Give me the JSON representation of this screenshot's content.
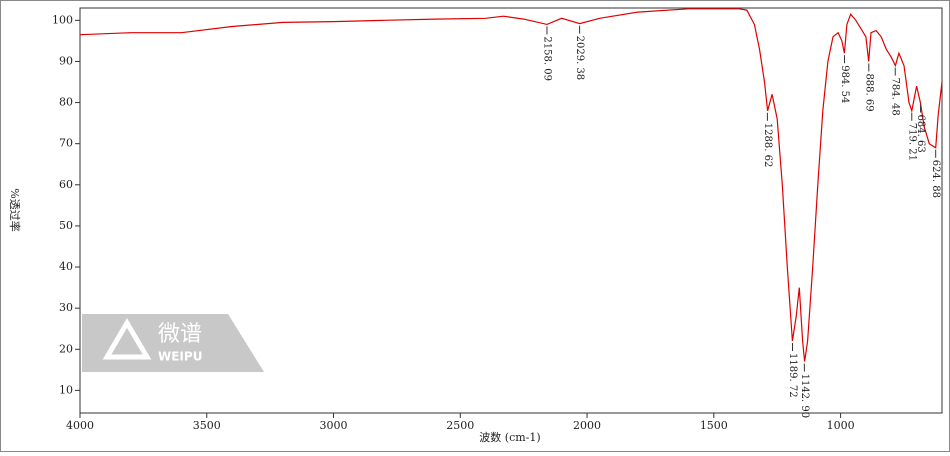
{
  "chart_data": {
    "type": "line",
    "xlabel": "波数 (cm-1)",
    "ylabel": "%透过率",
    "watermark": [
      "微谱",
      "WEIPU"
    ],
    "xlim": [
      4000,
      600
    ],
    "xticks": [
      4000,
      3500,
      3000,
      2500,
      2000,
      1500,
      1000
    ],
    "ylim": [
      4.5,
      103
    ],
    "yticks": [
      10,
      20,
      30,
      40,
      50,
      60,
      70,
      80,
      90,
      100
    ],
    "x": [
      4000,
      3800,
      3600,
      3400,
      3200,
      3000,
      2800,
      2600,
      2400,
      2330,
      2250,
      2158,
      2100,
      2029,
      1950,
      1800,
      1600,
      1400,
      1370,
      1340,
      1320,
      1300,
      1288,
      1270,
      1250,
      1230,
      1210,
      1190,
      1175,
      1163,
      1150,
      1142,
      1130,
      1110,
      1090,
      1070,
      1050,
      1030,
      1010,
      995,
      985,
      975,
      960,
      940,
      920,
      900,
      889,
      880,
      860,
      840,
      820,
      800,
      784,
      770,
      750,
      730,
      719,
      700,
      685,
      670,
      650,
      625,
      615,
      600
    ],
    "series": [
      {
        "color": "#e00000",
        "values": [
          96.5,
          97,
          97,
          98.5,
          99.5,
          99.7,
          100,
          100.3,
          100.5,
          101,
          100.3,
          99,
          100.5,
          99.2,
          100.5,
          102,
          102.8,
          102.8,
          102.5,
          99,
          93,
          85,
          78,
          82,
          76,
          60,
          40,
          22,
          28,
          35,
          22,
          17,
          22,
          40,
          60,
          78,
          90,
          96,
          97,
          95,
          92,
          99,
          101.5,
          100,
          98,
          96,
          90,
          97,
          97.5,
          96,
          93,
          91,
          89,
          92,
          89,
          80,
          78,
          84,
          80,
          74,
          70,
          69,
          77,
          85
        ]
      }
    ],
    "annotations": [
      {
        "x": 2158.09,
        "y": 99,
        "label": "2158. 09"
      },
      {
        "x": 2029.38,
        "y": 99.2,
        "label": "2029. 38"
      },
      {
        "x": 1288.62,
        "y": 78,
        "label": "1288. 62"
      },
      {
        "x": 1189.72,
        "y": 22,
        "label": "1189. 72"
      },
      {
        "x": 1142.9,
        "y": 17,
        "label": "1142. 90"
      },
      {
        "x": 984.54,
        "y": 92,
        "label": "984. 54"
      },
      {
        "x": 888.69,
        "y": 90,
        "label": "888. 69"
      },
      {
        "x": 784.48,
        "y": 89,
        "label": "784. 48"
      },
      {
        "x": 719.21,
        "y": 78,
        "label": "719. 21"
      },
      {
        "x": 684.63,
        "y": 80,
        "label": "684. 63"
      },
      {
        "x": 624.88,
        "y": 69,
        "label": "624. 88"
      }
    ]
  }
}
